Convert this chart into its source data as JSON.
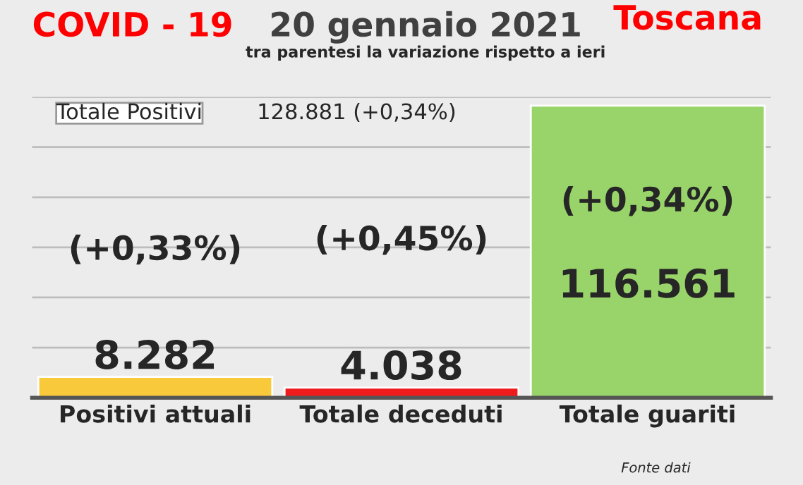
{
  "chart_data": {
    "type": "bar",
    "title": "COVID - 19",
    "subtitle": "20 gennaio 2021",
    "categories": [
      "Positivi attuali",
      "Totale deceduti",
      "Totale guariti"
    ],
    "values": [
      8282,
      4038,
      116561
    ],
    "colors": [
      "#f9c93c",
      "#ee1c1c",
      "#99d46a"
    ],
    "value_labels": [
      "8.282",
      "4.038",
      "116.561"
    ],
    "ylim": [
      0,
      120000
    ],
    "yticks": [
      {
        "value": 20000,
        "label": null
      },
      {
        "value": 40000,
        "label": null
      },
      {
        "value": 60000,
        "label": null
      },
      {
        "value": 80000,
        "label": null
      },
      {
        "value": 100000,
        "label": null
      },
      {
        "value": 120000,
        "label": null
      }
    ],
    "tick_labels": "x",
    "grid": "y",
    "annotations": [
      "Toscana",
      "tra parentesi la variazione rispetto a ieri",
      "Totale Positivi",
      "128.881 (+0,34%)",
      "(+0,33%)",
      "(+0,45%)",
      "(+0,34%)",
      "Fonte dati"
    ]
  }
}
